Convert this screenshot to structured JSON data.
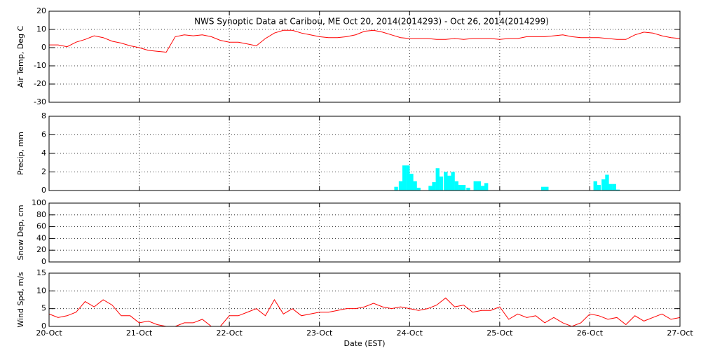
{
  "chart_data": [
    {
      "type": "line",
      "title": "NWS Synoptic Data at Caribou, ME   Oct 20, 2014(2014293) - Oct 26, 2014(2014299)",
      "ylabel": "Air Temp, Deg C",
      "color": "#ff0000",
      "xlim": [
        0,
        7
      ],
      "ylim": [
        -30,
        20
      ],
      "yticks": [
        -30,
        -20,
        -10,
        0,
        10,
        20
      ],
      "grid": true,
      "x": [
        0,
        0.1,
        0.2,
        0.3,
        0.4,
        0.5,
        0.6,
        0.7,
        0.8,
        0.9,
        1.0,
        1.1,
        1.2,
        1.3,
        1.4,
        1.5,
        1.6,
        1.7,
        1.8,
        1.9,
        2.0,
        2.1,
        2.2,
        2.3,
        2.4,
        2.5,
        2.6,
        2.7,
        2.8,
        2.9,
        3.0,
        3.1,
        3.2,
        3.3,
        3.4,
        3.5,
        3.6,
        3.7,
        3.8,
        3.9,
        4.0,
        4.1,
        4.2,
        4.3,
        4.4,
        4.5,
        4.6,
        4.7,
        4.8,
        4.9,
        5.0,
        5.1,
        5.2,
        5.3,
        5.4,
        5.5,
        5.6,
        5.7,
        5.8,
        5.9,
        6.0,
        6.1,
        6.2,
        6.3,
        6.4,
        6.5,
        6.6,
        6.7,
        6.8,
        6.9,
        7.0
      ],
      "values": [
        1.5,
        1.5,
        0.5,
        3,
        4.5,
        6.5,
        5.5,
        3.5,
        2.5,
        1,
        0,
        -1.5,
        -2,
        -2.5,
        6,
        7,
        6.5,
        7,
        6,
        4,
        3,
        3,
        2,
        1,
        5,
        8,
        9.5,
        9.5,
        8,
        7,
        6,
        5.5,
        5.5,
        6,
        7,
        9,
        9.5,
        8.5,
        7,
        5.5,
        5,
        5,
        5,
        4.5,
        4.5,
        5,
        4.5,
        5,
        5,
        5,
        4.5,
        5,
        5,
        6,
        6,
        6,
        6.5,
        7,
        6,
        5.5,
        5.5,
        5.5,
        5,
        4.5,
        4.5,
        7,
        8.5,
        8,
        6.5,
        5.5,
        5
      ]
    },
    {
      "type": "bar",
      "ylabel": "Precip, mm",
      "color": "#00ffff",
      "xlim": [
        0,
        7
      ],
      "ylim": [
        0,
        8
      ],
      "yticks": [
        0,
        2,
        4,
        6,
        8
      ],
      "grid": true,
      "x": [
        3.83,
        3.88,
        3.92,
        3.96,
        4.0,
        4.04,
        4.08,
        4.21,
        4.25,
        4.29,
        4.33,
        4.38,
        4.42,
        4.46,
        4.5,
        4.54,
        4.58,
        4.63,
        4.71,
        4.75,
        4.79,
        4.83,
        5.46,
        5.5,
        6.04,
        6.08,
        6.13,
        6.17,
        6.21,
        6.25,
        6.29
      ],
      "values": [
        0.4,
        1.0,
        2.7,
        2.7,
        1.8,
        1.0,
        0.3,
        0.5,
        0.9,
        2.4,
        1.5,
        2.0,
        1.6,
        2.0,
        1.0,
        0.6,
        0.6,
        0.3,
        1.0,
        1.0,
        0.5,
        0.8,
        0.4,
        0.4,
        1.0,
        0.6,
        1.2,
        1.7,
        0.7,
        0.7,
        0.1
      ]
    },
    {
      "type": "line",
      "ylabel": "Snow Dep, cm",
      "color": "#ff0000",
      "xlim": [
        0,
        7
      ],
      "ylim": [
        0,
        100
      ],
      "yticks": [
        0,
        20,
        40,
        60,
        80,
        100
      ],
      "grid": true,
      "x": [],
      "values": []
    },
    {
      "type": "line",
      "ylabel": "Wind Spd, m/s",
      "xlabel": "Date (EST)",
      "color": "#ff0000",
      "xlim": [
        0,
        7
      ],
      "ylim": [
        0,
        15
      ],
      "yticks": [
        0,
        5,
        10,
        15
      ],
      "grid": true,
      "xticks": [
        {
          "value": 0,
          "label": "20-Oct"
        },
        {
          "value": 1,
          "label": "21-Oct"
        },
        {
          "value": 2,
          "label": "22-Oct"
        },
        {
          "value": 3,
          "label": "23-Oct"
        },
        {
          "value": 4,
          "label": "24-Oct"
        },
        {
          "value": 5,
          "label": "25-Oct"
        },
        {
          "value": 6,
          "label": "26-Oct"
        },
        {
          "value": 7,
          "label": "27-Oct"
        }
      ],
      "x": [
        0,
        0.1,
        0.2,
        0.3,
        0.4,
        0.5,
        0.6,
        0.7,
        0.8,
        0.9,
        1.0,
        1.1,
        1.2,
        1.3,
        1.4,
        1.5,
        1.6,
        1.7,
        1.8,
        1.9,
        2.0,
        2.1,
        2.2,
        2.3,
        2.4,
        2.5,
        2.6,
        2.7,
        2.8,
        2.9,
        3.0,
        3.1,
        3.2,
        3.3,
        3.4,
        3.5,
        3.6,
        3.7,
        3.8,
        3.9,
        4.0,
        4.1,
        4.2,
        4.3,
        4.4,
        4.5,
        4.6,
        4.7,
        4.8,
        4.9,
        5.0,
        5.1,
        5.2,
        5.3,
        5.4,
        5.5,
        5.6,
        5.7,
        5.8,
        5.9,
        6.0,
        6.1,
        6.2,
        6.3,
        6.4,
        6.5,
        6.6,
        6.7,
        6.8,
        6.9,
        7.0
      ],
      "values": [
        3.5,
        2.5,
        3,
        4,
        7,
        5.5,
        7.5,
        6,
        3,
        3,
        1,
        1.5,
        0.5,
        0,
        0,
        1,
        1,
        2,
        0,
        0,
        3,
        3,
        4,
        5,
        3,
        7.5,
        3.5,
        5,
        3,
        3.5,
        4,
        4,
        4.5,
        5,
        5,
        5.5,
        6.5,
        5.5,
        5,
        5.5,
        5,
        4.5,
        5,
        6,
        8,
        5.5,
        6,
        4,
        4.5,
        4.5,
        5.5,
        2,
        3.5,
        2.5,
        3,
        1,
        2.5,
        1,
        0,
        1,
        3.5,
        3,
        2,
        2.5,
        0.5,
        3,
        1.5,
        2.5,
        3.5,
        2,
        2.5
      ]
    }
  ]
}
